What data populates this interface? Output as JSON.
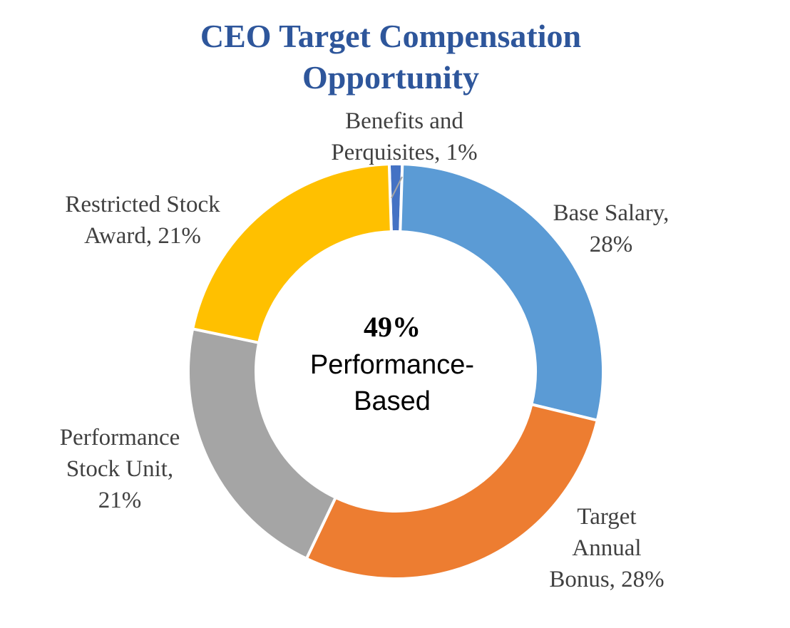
{
  "chart_data": {
    "type": "pie",
    "title_lines": [
      "CEO Target Compensation",
      "Opportunity"
    ],
    "categories": [
      "Benefits and Perquisites",
      "Base Salary",
      "Target Annual Bonus",
      "Performance Stock Unit",
      "Restricted Stock Award"
    ],
    "values": [
      1,
      28,
      28,
      21,
      21
    ],
    "colors": [
      "#4472C4",
      "#5B9BD5",
      "#ED7D31",
      "#A5A5A5",
      "#FFC000"
    ],
    "data_labels": [
      [
        "Benefits and",
        "Perquisites, 1%"
      ],
      [
        "Base Salary,",
        "28%"
      ],
      [
        "Target",
        "Annual",
        "Bonus, 28%"
      ],
      [
        "Performance",
        "Stock Unit,",
        "21%"
      ],
      [
        "Restricted Stock",
        "Award, 21%"
      ]
    ],
    "center_label": {
      "value": "49%",
      "lines": [
        "Performance-",
        "Based"
      ]
    }
  }
}
